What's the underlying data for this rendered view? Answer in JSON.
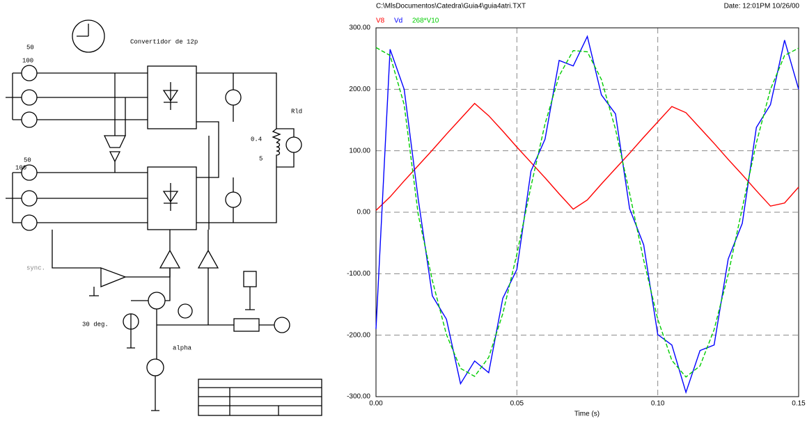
{
  "schematic": {
    "source1_amplitude": "50",
    "source1_value": "100",
    "title": "Convertidor de 12p",
    "load_label": "Rld",
    "load_r": "0.4",
    "load_l": "5",
    "source2_amplitude": "50",
    "source2_value": "100",
    "sync_label": "sync.",
    "angle_label": "30 deg.",
    "alpha_label": "alpha"
  },
  "chart_data": {
    "type": "line",
    "file": "C:\\MlsDocumentos\\Catedra\\Guia4\\guia4atri.TXT",
    "date": "Date: 12:01PM 10/26/00",
    "xlabel": "Time (s)",
    "x": [
      0,
      0.005,
      0.01,
      0.015,
      0.02,
      0.025,
      0.03,
      0.035,
      0.04,
      0.045,
      0.05,
      0.055,
      0.06,
      0.065,
      0.07,
      0.075,
      0.08,
      0.085,
      0.09,
      0.095,
      0.1,
      0.105,
      0.11,
      0.115,
      0.12,
      0.125,
      0.13,
      0.135,
      0.14,
      0.145,
      0.15
    ],
    "series": [
      {
        "name": "V8",
        "color": "#ff0000",
        "values": [
          3,
          25,
          51,
          76,
          101,
          127,
          152,
          177,
          157,
          132,
          106,
          81,
          56,
          30,
          5,
          20,
          46,
          71,
          96,
          122,
          147,
          172,
          162,
          137,
          112,
          86,
          61,
          35,
          10,
          15,
          41
        ]
      },
      {
        "name": "Vd",
        "color": "#0000ff",
        "values": [
          -190,
          265,
          200,
          21,
          -136,
          -174,
          -279,
          -242,
          -261,
          -140,
          -93,
          67,
          119,
          247,
          238,
          286,
          191,
          160,
          6,
          -53,
          -199,
          -216,
          -293,
          -225,
          -216,
          -76,
          -18,
          138,
          175,
          280,
          200
        ]
      },
      {
        "name": "268*V10",
        "color": "#00cc00",
        "dashed": true,
        "values": [
          268,
          255,
          175,
          -4,
          -111,
          -199,
          -254,
          -267,
          -236,
          -165,
          -68,
          42,
          144,
          222,
          263,
          261,
          216,
          135,
          31,
          -78,
          -174,
          -241,
          -268,
          -250,
          -191,
          -101,
          7,
          113,
          200,
          255,
          267
        ]
      }
    ],
    "xlim": [
      0,
      0.15
    ],
    "xticks": [
      {
        "value": 0,
        "label": "0.00"
      },
      {
        "value": 0.05,
        "label": "0.05"
      },
      {
        "value": 0.1,
        "label": "0.10"
      },
      {
        "value": 0.15,
        "label": "0.15"
      }
    ],
    "ylim": [
      -300,
      300
    ],
    "yticks": [
      {
        "value": -300,
        "label": "-300.00"
      },
      {
        "value": -200,
        "label": "-200.00"
      },
      {
        "value": -100,
        "label": "-100.00"
      },
      {
        "value": 0,
        "label": "0.00"
      },
      {
        "value": 100,
        "label": "100.00"
      },
      {
        "value": 200,
        "label": "200.00"
      },
      {
        "value": 300,
        "label": "300.00"
      }
    ],
    "grid": true
  }
}
